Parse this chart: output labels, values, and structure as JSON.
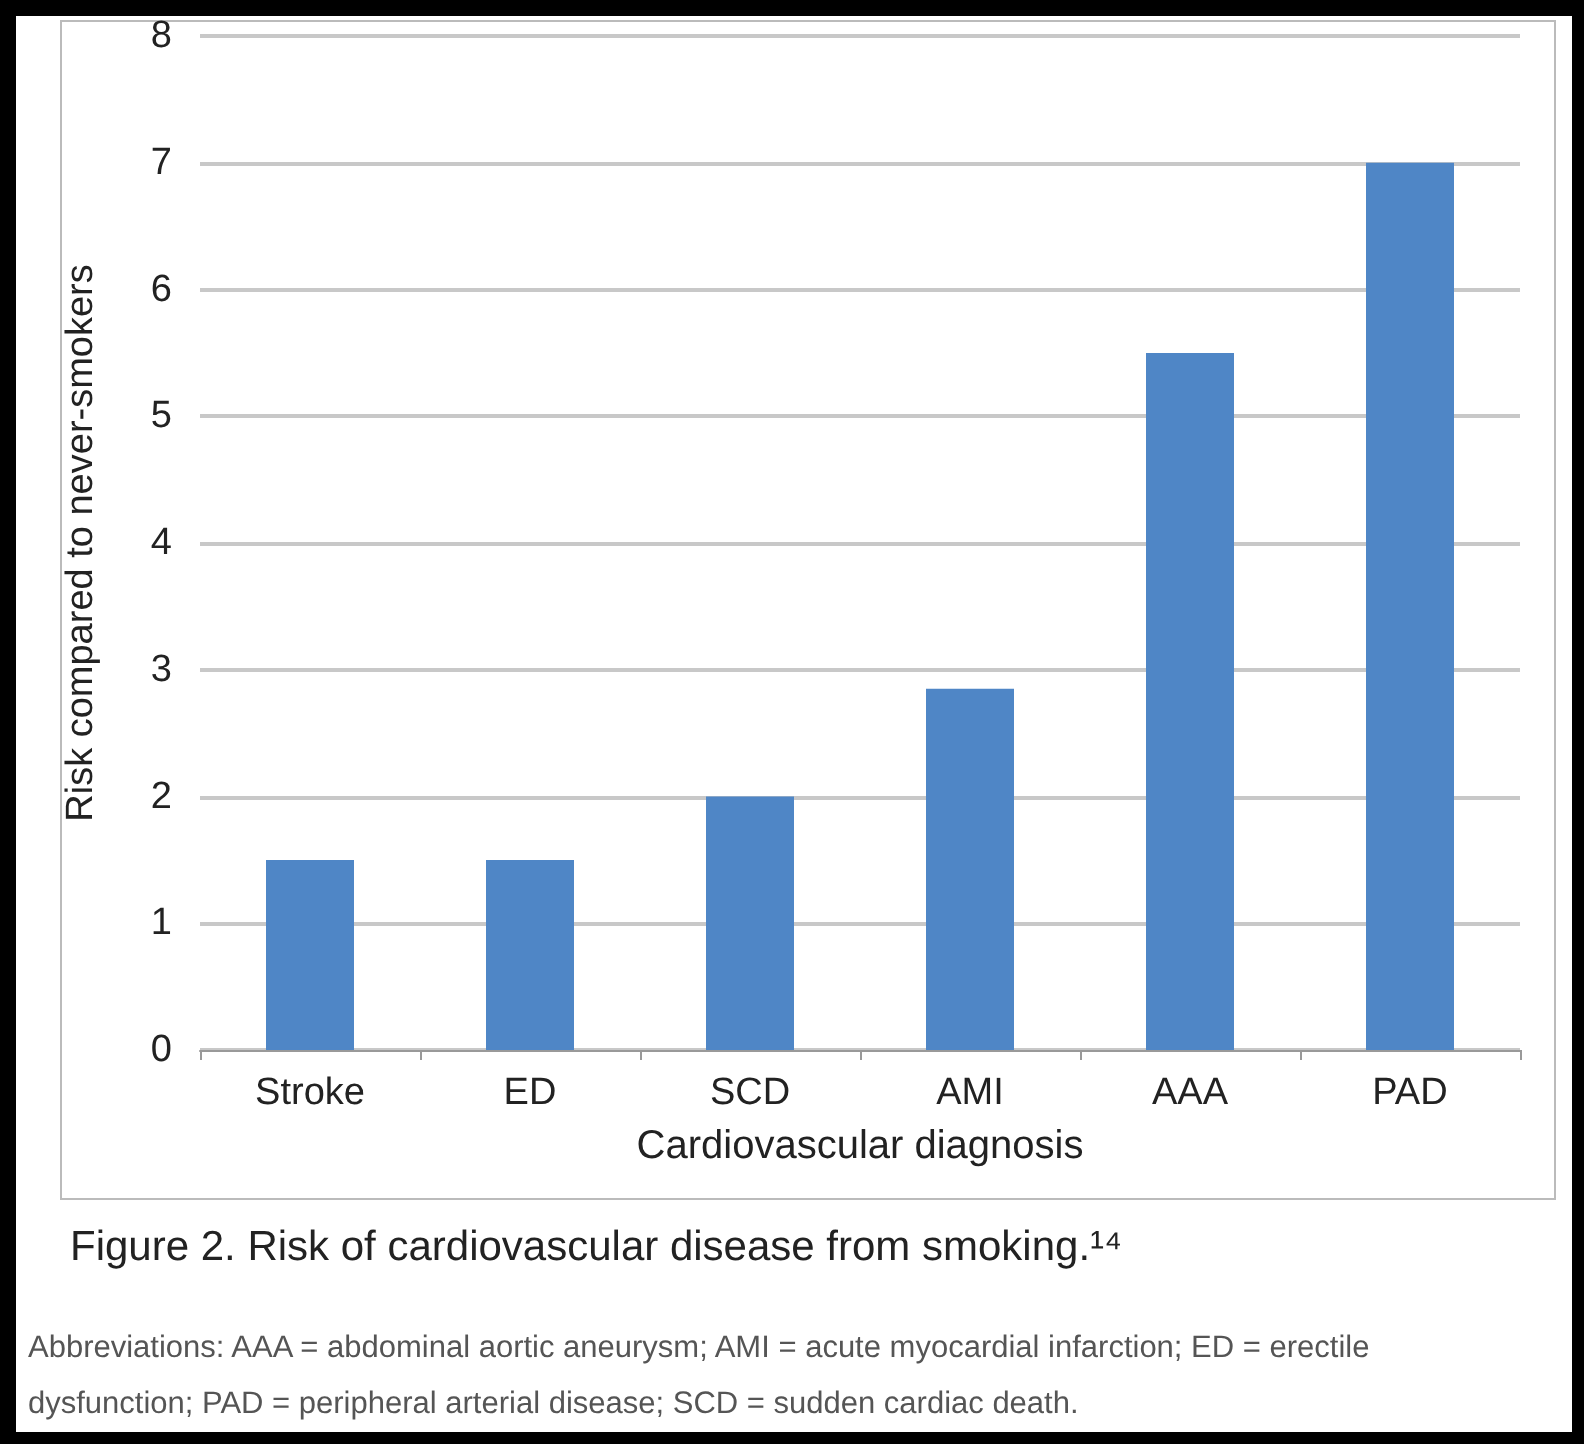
{
  "chart_data": {
    "type": "bar",
    "title": "Figure 2. Risk of cardiovascular disease from smoking.¹⁴",
    "xlabel": "Cardiovascular diagnosis",
    "ylabel": "Risk compared to never-smokers",
    "annotations": [
      "Abbreviations: AAA = abdominal aortic aneurysm; AMI = acute myocardial infarction; ED = erectile dysfunction; PAD = peripheral arterial disease; SCD = sudden cardiac death."
    ],
    "categories": [
      "Stroke",
      "ED",
      "SCD",
      "AMI",
      "AAA",
      "PAD"
    ],
    "values": [
      1.5,
      1.5,
      2,
      2.85,
      5.5,
      7
    ],
    "color": "#4f86c6",
    "ylim": [
      0,
      8
    ],
    "yticks": [
      0,
      1,
      2,
      3,
      4,
      5,
      6,
      7,
      8
    ],
    "grid": "y"
  }
}
